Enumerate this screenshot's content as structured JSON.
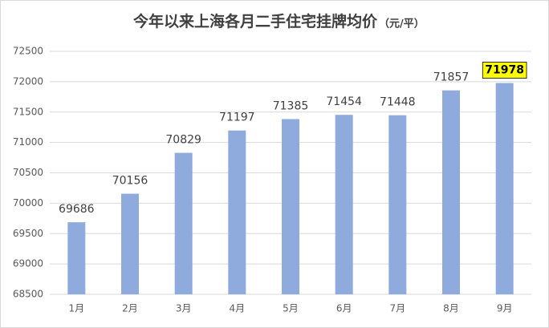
{
  "chart_data": {
    "type": "bar",
    "title": "今年以来上海各月二手住宅挂牌均价",
    "subtitle": "（元/平）",
    "categories": [
      "1月",
      "2月",
      "3月",
      "4月",
      "5月",
      "6月",
      "7月",
      "8月",
      "9月"
    ],
    "values": [
      69686,
      70156,
      70829,
      71197,
      71385,
      71454,
      71448,
      71857,
      71978
    ],
    "color": "#8faadc",
    "ylim": [
      68500,
      72500
    ],
    "yticks": [
      68500,
      69000,
      69500,
      70000,
      70500,
      71000,
      71500,
      72000,
      72500
    ],
    "grid": true,
    "highlighted": "9月",
    "highlight_color": "#ffff00"
  }
}
